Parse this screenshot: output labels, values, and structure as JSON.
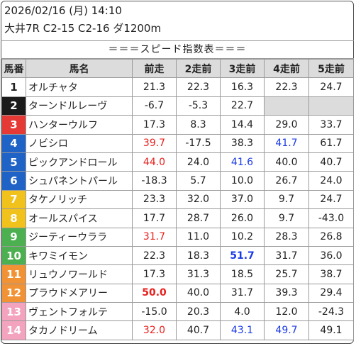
{
  "header": {
    "datetime": "2026/02/16 (月) 14:10",
    "race": "大井7R C2-15 C2-16 ダ1200m",
    "subtitle": "＝＝＝スピード指数表＝＝＝"
  },
  "columns": [
    "馬番",
    "馬名",
    "前走",
    "2走前",
    "3走前",
    "4走前",
    "5走前"
  ],
  "colors": {
    "header_bg": "#dcdcdc",
    "red": "#e8221f",
    "blue": "#1a3ae6"
  },
  "rows": [
    {
      "num": "1",
      "name": "オルチャタ",
      "bg": "#ffffff",
      "fg": "#222222",
      "vals": [
        {
          "v": "21.3"
        },
        {
          "v": "22.3"
        },
        {
          "v": "16.3"
        },
        {
          "v": "22.3"
        },
        {
          "v": "24.7"
        }
      ]
    },
    {
      "num": "2",
      "name": "ターンドルレーヴ",
      "bg": "#1b1b1b",
      "fg": "#ffffff",
      "vals": [
        {
          "v": "-6.7"
        },
        {
          "v": "-5.3"
        },
        {
          "v": "22.7"
        },
        {
          "v": "",
          "empty": true
        },
        {
          "v": "",
          "empty": true
        }
      ]
    },
    {
      "num": "3",
      "name": "ハンターウルフ",
      "bg": "#e53935",
      "fg": "#ffffff",
      "vals": [
        {
          "v": "17.3"
        },
        {
          "v": "8.3"
        },
        {
          "v": "14.4"
        },
        {
          "v": "29.0"
        },
        {
          "v": "33.7"
        }
      ]
    },
    {
      "num": "4",
      "name": "ノビシロ",
      "bg": "#1f63c7",
      "fg": "#ffffff",
      "vals": [
        {
          "v": "39.7",
          "c": "red"
        },
        {
          "v": "-17.5"
        },
        {
          "v": "38.3"
        },
        {
          "v": "41.7",
          "c": "blue"
        },
        {
          "v": "61.7"
        }
      ]
    },
    {
      "num": "5",
      "name": "ピックアンドロール",
      "bg": "#1f63c7",
      "fg": "#ffffff",
      "vals": [
        {
          "v": "44.0",
          "c": "red"
        },
        {
          "v": "24.0"
        },
        {
          "v": "41.6",
          "c": "blue"
        },
        {
          "v": "40.0"
        },
        {
          "v": "40.7"
        }
      ]
    },
    {
      "num": "6",
      "name": "シュパネントパール",
      "bg": "#1f63c7",
      "fg": "#ffffff",
      "vals": [
        {
          "v": "-18.3"
        },
        {
          "v": "5.7"
        },
        {
          "v": "10.0"
        },
        {
          "v": "26.7"
        },
        {
          "v": "24.0"
        }
      ]
    },
    {
      "num": "7",
      "name": "タケノリッチ",
      "bg": "#f1c21b",
      "fg": "#ffffff",
      "vals": [
        {
          "v": "23.3"
        },
        {
          "v": "32.0"
        },
        {
          "v": "37.0"
        },
        {
          "v": "9.7"
        },
        {
          "v": "24.7"
        }
      ]
    },
    {
      "num": "8",
      "name": "オールスパイス",
      "bg": "#f1c21b",
      "fg": "#ffffff",
      "vals": [
        {
          "v": "17.7"
        },
        {
          "v": "28.7"
        },
        {
          "v": "26.0"
        },
        {
          "v": "9.7"
        },
        {
          "v": "-43.0"
        }
      ]
    },
    {
      "num": "9",
      "name": "ジーティーウララ",
      "bg": "#4caf50",
      "fg": "#ffffff",
      "vals": [
        {
          "v": "31.7",
          "c": "red"
        },
        {
          "v": "11.0"
        },
        {
          "v": "10.2"
        },
        {
          "v": "28.3"
        },
        {
          "v": "26.8"
        }
      ]
    },
    {
      "num": "10",
      "name": "キワミイモン",
      "bg": "#4caf50",
      "fg": "#ffffff",
      "vals": [
        {
          "v": "22.3"
        },
        {
          "v": "18.3"
        },
        {
          "v": "51.7",
          "c": "blue",
          "b": true
        },
        {
          "v": "31.7"
        },
        {
          "v": "36.0"
        }
      ]
    },
    {
      "num": "11",
      "name": "リュウノワールド",
      "bg": "#f19234",
      "fg": "#ffffff",
      "vals": [
        {
          "v": "17.3"
        },
        {
          "v": "31.3"
        },
        {
          "v": "18.5"
        },
        {
          "v": "25.7"
        },
        {
          "v": "38.7"
        }
      ]
    },
    {
      "num": "12",
      "name": "プラウドメアリー",
      "bg": "#f19234",
      "fg": "#ffffff",
      "vals": [
        {
          "v": "50.0",
          "c": "red",
          "b": true
        },
        {
          "v": "40.0"
        },
        {
          "v": "31.7"
        },
        {
          "v": "39.3"
        },
        {
          "v": "29.4"
        }
      ]
    },
    {
      "num": "13",
      "name": "ヴェントフォルテ",
      "bg": "#f3a3bd",
      "fg": "#ffffff",
      "vals": [
        {
          "v": "-15.0"
        },
        {
          "v": "20.3"
        },
        {
          "v": "4.0"
        },
        {
          "v": "12.0"
        },
        {
          "v": "-24.3"
        }
      ]
    },
    {
      "num": "14",
      "name": "タカノドリーム",
      "bg": "#f3a3bd",
      "fg": "#ffffff",
      "vals": [
        {
          "v": "32.0",
          "c": "red"
        },
        {
          "v": "40.7"
        },
        {
          "v": "43.1",
          "c": "blue"
        },
        {
          "v": "49.7",
          "c": "blue"
        },
        {
          "v": "49.1"
        }
      ]
    }
  ]
}
